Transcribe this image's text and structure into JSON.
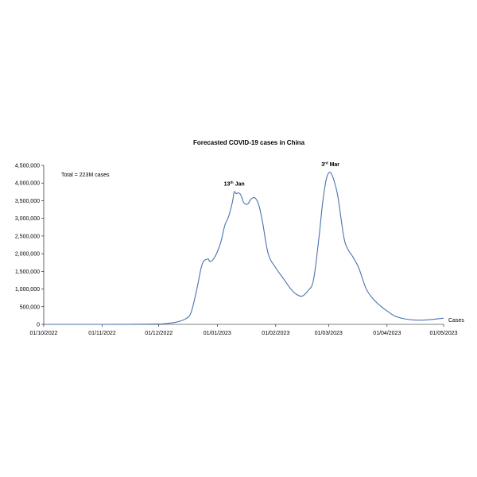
{
  "chart_data": {
    "type": "line",
    "title": "Forecasted COVID-19 cases in China",
    "xlabel": "",
    "ylabel": "",
    "ylim": [
      0,
      4500000
    ],
    "y_ticks": [
      "0",
      "500,000",
      "1,000,000",
      "1,500,000",
      "2,000,000",
      "2,500,000",
      "3,000,000",
      "3,500,000",
      "4,000,000",
      "4,500,000"
    ],
    "x_ticks": [
      "01/10/2022",
      "01/11/2022",
      "01/12/2022",
      "01/01/2023",
      "01/02/2023",
      "01/03/2023",
      "01/04/2023",
      "01/05/2023"
    ],
    "xlim": [
      "2022-10-01",
      "2023-05-01"
    ],
    "grid": false,
    "legend": "right",
    "colors": {
      "line": "#4a72b0",
      "axis": "#000000"
    },
    "series": [
      {
        "name": "Cases",
        "points": [
          [
            "2022-10-01",
            0
          ],
          [
            "2022-11-01",
            0
          ],
          [
            "2022-11-15",
            3000
          ],
          [
            "2022-12-01",
            10000
          ],
          [
            "2022-12-05",
            25000
          ],
          [
            "2022-12-10",
            60000
          ],
          [
            "2022-12-15",
            150000
          ],
          [
            "2022-12-18",
            320000
          ],
          [
            "2022-12-21",
            950000
          ],
          [
            "2022-12-24",
            1700000
          ],
          [
            "2022-12-27",
            1850000
          ],
          [
            "2022-12-28",
            1780000
          ],
          [
            "2022-12-30",
            1850000
          ],
          [
            "2023-01-01",
            2050000
          ],
          [
            "2023-01-03",
            2350000
          ],
          [
            "2023-01-05",
            2800000
          ],
          [
            "2023-01-07",
            3050000
          ],
          [
            "2023-01-09",
            3450000
          ],
          [
            "2023-01-10",
            3750000
          ],
          [
            "2023-01-11",
            3700000
          ],
          [
            "2023-01-12",
            3720000
          ],
          [
            "2023-01-13",
            3700000
          ],
          [
            "2023-01-14",
            3600000
          ],
          [
            "2023-01-15",
            3450000
          ],
          [
            "2023-01-17",
            3400000
          ],
          [
            "2023-01-19",
            3550000
          ],
          [
            "2023-01-21",
            3580000
          ],
          [
            "2023-01-23",
            3380000
          ],
          [
            "2023-01-25",
            2900000
          ],
          [
            "2023-01-28",
            2000000
          ],
          [
            "2023-02-01",
            1600000
          ],
          [
            "2023-02-05",
            1300000
          ],
          [
            "2023-02-09",
            1000000
          ],
          [
            "2023-02-12",
            850000
          ],
          [
            "2023-02-15",
            800000
          ],
          [
            "2023-02-18",
            950000
          ],
          [
            "2023-02-21",
            1250000
          ],
          [
            "2023-02-24",
            2500000
          ],
          [
            "2023-02-26",
            3500000
          ],
          [
            "2023-02-28",
            4150000
          ],
          [
            "2023-03-02",
            4300000
          ],
          [
            "2023-03-04",
            4050000
          ],
          [
            "2023-03-06",
            3600000
          ],
          [
            "2023-03-09",
            2500000
          ],
          [
            "2023-03-11",
            2150000
          ],
          [
            "2023-03-14",
            1900000
          ],
          [
            "2023-03-17",
            1600000
          ],
          [
            "2023-03-21",
            1000000
          ],
          [
            "2023-03-25",
            700000
          ],
          [
            "2023-03-29",
            500000
          ],
          [
            "2023-04-01",
            380000
          ],
          [
            "2023-04-05",
            240000
          ],
          [
            "2023-04-10",
            160000
          ],
          [
            "2023-04-15",
            125000
          ],
          [
            "2023-04-20",
            120000
          ],
          [
            "2023-04-25",
            140000
          ],
          [
            "2023-05-01",
            175000
          ]
        ]
      }
    ],
    "annotations": [
      {
        "x": "2023-01-10",
        "y": 3750000,
        "base": "13",
        "sup": "th",
        "rest": " Jan"
      },
      {
        "x": "2023-03-02",
        "y": 4300000,
        "base": "3",
        "sup": "rd",
        "rest": " Mar"
      }
    ],
    "note": "Total = 223M cases"
  }
}
